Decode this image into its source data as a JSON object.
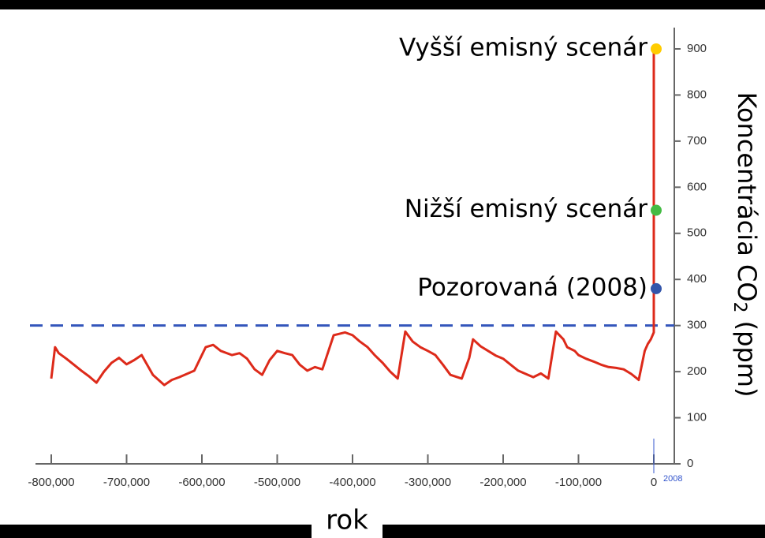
{
  "chart_data": {
    "type": "line",
    "xlabel": "rok",
    "ylabel": [
      "Koncentrácia CO",
      "2",
      " (ppm)"
    ],
    "xlim": [
      -800000,
      0
    ],
    "ylim": [
      0,
      900
    ],
    "xticks": [
      {
        "value": -800000,
        "label": "-800,000"
      },
      {
        "value": -700000,
        "label": "-700,000"
      },
      {
        "value": -600000,
        "label": "-600,000"
      },
      {
        "value": -500000,
        "label": "-500,000"
      },
      {
        "value": -400000,
        "label": "-400,000"
      },
      {
        "value": -300000,
        "label": "-300,000"
      },
      {
        "value": -200000,
        "label": "-200,000"
      },
      {
        "value": -100000,
        "label": "-100,000"
      },
      0
    ],
    "yticks": [
      0,
      100,
      200,
      300,
      400,
      500,
      600,
      700,
      800,
      900
    ],
    "x_marker": {
      "value": 0,
      "label": "2008",
      "color": "#3355cc"
    },
    "reference_line": {
      "value": 300,
      "color": "#3355bb"
    },
    "series": [
      {
        "color": "#dd2a1a",
        "x": [
          -800000,
          -795000,
          -790000,
          -780000,
          -770000,
          -760000,
          -750000,
          -740000,
          -730000,
          -720000,
          -710000,
          -700000,
          -690000,
          -680000,
          -665000,
          -650000,
          -640000,
          -630000,
          -620000,
          -610000,
          -595000,
          -585000,
          -575000,
          -560000,
          -550000,
          -540000,
          -530000,
          -520000,
          -510000,
          -500000,
          -490000,
          -480000,
          -470000,
          -460000,
          -450000,
          -440000,
          -425000,
          -410000,
          -400000,
          -390000,
          -380000,
          -370000,
          -360000,
          -350000,
          -340000,
          -330000,
          -320000,
          -310000,
          -300000,
          -290000,
          -280000,
          -270000,
          -255000,
          -245000,
          -240000,
          -230000,
          -220000,
          -210000,
          -200000,
          -190000,
          -180000,
          -170000,
          -160000,
          -150000,
          -140000,
          -130000,
          -120000,
          -115000,
          -105000,
          -100000,
          -90000,
          -80000,
          -70000,
          -60000,
          -50000,
          -40000,
          -30000,
          -20000,
          -12000,
          -8000,
          -4000,
          0,
          0,
          0
        ],
        "values": [
          185,
          253,
          240,
          228,
          215,
          202,
          190,
          176,
          200,
          219,
          230,
          216,
          225,
          236,
          193,
          171,
          182,
          188,
          195,
          202,
          253,
          258,
          245,
          236,
          240,
          228,
          205,
          193,
          225,
          245,
          240,
          236,
          215,
          202,
          210,
          205,
          279,
          285,
          279,
          265,
          253,
          235,
          219,
          200,
          185,
          287,
          265,
          253,
          245,
          236,
          215,
          193,
          185,
          230,
          270,
          255,
          245,
          235,
          228,
          215,
          202,
          195,
          188,
          196,
          185,
          287,
          270,
          253,
          245,
          236,
          228,
          222,
          215,
          210,
          208,
          205,
          195,
          182,
          245,
          260,
          270,
          285,
          380,
          900
        ]
      }
    ],
    "points": [
      {
        "label": "Vyšší emisný scenár",
        "value": 900,
        "color": "#ffcc00"
      },
      {
        "label": "Nižší emisný scenár",
        "value": 550,
        "color": "#44bb44"
      },
      {
        "label": "Pozorovaná (2008)",
        "value": 380,
        "color": "#3355aa"
      }
    ]
  }
}
